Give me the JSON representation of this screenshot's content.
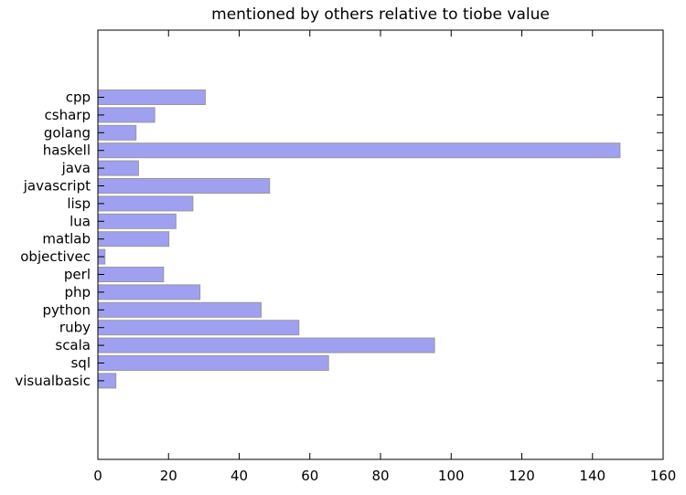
{
  "chart_data": {
    "type": "bar",
    "orientation": "horizontal",
    "title": "mentioned by others relative to tiobe value",
    "categories": [
      "cpp",
      "csharp",
      "golang",
      "haskell",
      "java",
      "javascript",
      "lisp",
      "lua",
      "matlab",
      "objectivec",
      "perl",
      "php",
      "python",
      "ruby",
      "scala",
      "sql",
      "visualbasic"
    ],
    "values": [
      30.4,
      16.1,
      10.8,
      147.8,
      11.5,
      48.6,
      26.9,
      22.1,
      20.1,
      2.0,
      18.6,
      28.9,
      46.2,
      56.9,
      95.3,
      65.3,
      5.1
    ],
    "xlabel": "",
    "ylabel": "",
    "xlim": [
      0,
      160
    ],
    "x_ticks": [
      0,
      20,
      40,
      60,
      80,
      100,
      120,
      140,
      160
    ],
    "x_tick_labels": [
      "0",
      "20",
      "40",
      "60",
      "80",
      "100",
      "120",
      "140",
      "160"
    ],
    "grid": false,
    "tick_direction": "in",
    "legend": "none",
    "bar_color": "#a0a0f0",
    "bar_edge_color": "#97979f",
    "axis_color": "#000000",
    "background_color": "#ffffff"
  }
}
